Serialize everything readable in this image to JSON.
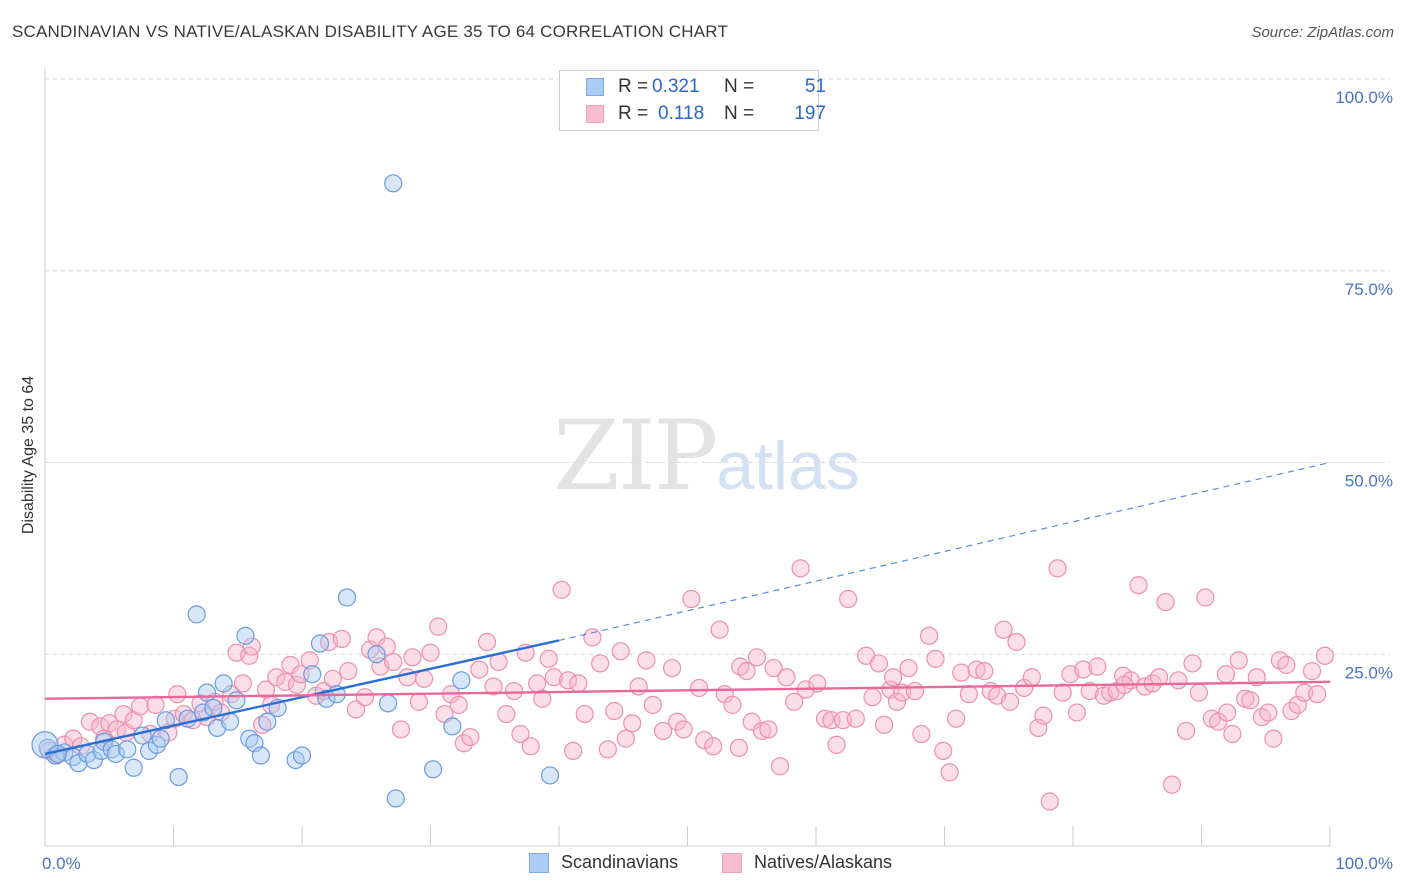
{
  "title": "SCANDINAVIAN VS NATIVE/ALASKAN DISABILITY AGE 35 TO 64 CORRELATION CHART",
  "source": "Source: ZipAtlas.com",
  "watermark": {
    "zip": "ZIP",
    "atlas": "atlas"
  },
  "legend": {
    "rows": [
      {
        "r_label": "R =",
        "r_value": "0.321",
        "n_label": "N =",
        "n_value": "51",
        "color": "#9dc3f2"
      },
      {
        "r_label": "R =",
        "r_value": "0.118",
        "n_label": "N =",
        "n_value": "197",
        "color": "#f6b3c8"
      }
    ]
  },
  "bottom_legend": [
    {
      "label": "Scandinavians",
      "color": "#9dc3f2"
    },
    {
      "label": "Natives/Alaskans",
      "color": "#f6b3c8"
    }
  ],
  "colors": {
    "blue_fill": "#a9c9f0",
    "blue_stroke": "#6a9be0",
    "blue_line": "#2b6fd1",
    "pink_fill": "#f7b6cb",
    "pink_stroke": "#ec8fae",
    "pink_line": "#e8689a",
    "grid": "#dcdcdc",
    "tick_label": "#4a72c4"
  },
  "chart_data": {
    "type": "scatter",
    "title": "SCANDINAVIAN VS NATIVE/ALASKAN DISABILITY AGE 35 TO 64 CORRELATION CHART",
    "xlabel": "",
    "ylabel": "Disability Age 35 to 64",
    "xlim": [
      0,
      100
    ],
    "ylim": [
      0,
      100
    ],
    "x_tick_labels": [
      "0.0%",
      "100.0%"
    ],
    "y_ticks": [
      25,
      50,
      75,
      100
    ],
    "y_tick_labels": [
      "25.0%",
      "50.0%",
      "75.0%",
      "100.0%"
    ],
    "grid": true,
    "legend_position": "top-center",
    "series": [
      {
        "name": "Scandinavians",
        "r": 0.321,
        "n": 51,
        "trend": {
          "x0": 0,
          "y0": 12.0,
          "x1": 40,
          "y1": 26.8,
          "dashed_to": {
            "x": 100,
            "y": 50.0
          }
        },
        "points": [
          [
            0.2,
            12.8
          ],
          [
            0.8,
            11.8
          ],
          [
            1.5,
            12.2
          ],
          [
            2.2,
            11.6
          ],
          [
            2.6,
            10.8
          ],
          [
            3.3,
            12.0
          ],
          [
            3.8,
            11.2
          ],
          [
            4.4,
            12.4
          ],
          [
            4.6,
            13.6
          ],
          [
            5.2,
            12.6
          ],
          [
            5.5,
            12.0
          ],
          [
            6.4,
            12.6
          ],
          [
            6.9,
            10.2
          ],
          [
            7.6,
            14.4
          ],
          [
            8.1,
            12.4
          ],
          [
            8.7,
            13.2
          ],
          [
            9.4,
            16.4
          ],
          [
            10.4,
            9.0
          ],
          [
            11.1,
            16.6
          ],
          [
            11.8,
            30.2
          ],
          [
            12.3,
            17.4
          ],
          [
            12.6,
            20.0
          ],
          [
            13.1,
            18.0
          ],
          [
            13.4,
            15.4
          ],
          [
            13.9,
            21.2
          ],
          [
            14.4,
            16.2
          ],
          [
            14.9,
            19.0
          ],
          [
            15.6,
            27.4
          ],
          [
            15.9,
            14.0
          ],
          [
            16.3,
            13.4
          ],
          [
            16.8,
            11.8
          ],
          [
            17.3,
            16.2
          ],
          [
            18.1,
            18.0
          ],
          [
            19.5,
            11.2
          ],
          [
            20.8,
            22.4
          ],
          [
            21.4,
            26.4
          ],
          [
            21.9,
            19.2
          ],
          [
            22.7,
            19.8
          ],
          [
            23.5,
            32.4
          ],
          [
            25.8,
            25.0
          ],
          [
            26.7,
            18.6
          ],
          [
            27.1,
            86.4
          ],
          [
            27.3,
            6.2
          ],
          [
            30.2,
            10.0
          ],
          [
            31.7,
            15.6
          ],
          [
            32.4,
            21.6
          ],
          [
            39.3,
            9.2
          ],
          [
            20.0,
            11.8
          ],
          [
            9.0,
            14.0
          ],
          [
            0.0,
            13.2
          ],
          [
            1.0,
            12.0
          ]
        ]
      },
      {
        "name": "Natives/Alaskans",
        "r": 0.118,
        "n": 197,
        "trend": {
          "x0": 0,
          "y0": 19.2,
          "x1": 100,
          "y1": 21.4
        },
        "points": [
          [
            0.3,
            12.4
          ],
          [
            0.9,
            11.8
          ],
          [
            1.5,
            13.2
          ],
          [
            2.2,
            14.0
          ],
          [
            2.8,
            13.0
          ],
          [
            3.5,
            16.2
          ],
          [
            4.3,
            15.6
          ],
          [
            4.6,
            14.0
          ],
          [
            5.0,
            16.0
          ],
          [
            5.6,
            15.2
          ],
          [
            6.1,
            17.2
          ],
          [
            6.3,
            14.8
          ],
          [
            6.9,
            16.4
          ],
          [
            7.4,
            18.2
          ],
          [
            8.2,
            14.6
          ],
          [
            8.6,
            18.4
          ],
          [
            9.6,
            14.8
          ],
          [
            10.1,
            16.6
          ],
          [
            10.3,
            19.8
          ],
          [
            10.8,
            17.2
          ],
          [
            11.5,
            16.4
          ],
          [
            12.1,
            18.6
          ],
          [
            12.6,
            16.8
          ],
          [
            13.2,
            18.8
          ],
          [
            13.7,
            17.4
          ],
          [
            14.5,
            19.8
          ],
          [
            14.9,
            25.2
          ],
          [
            15.4,
            21.2
          ],
          [
            15.9,
            24.8
          ],
          [
            16.1,
            26.0
          ],
          [
            16.9,
            15.8
          ],
          [
            17.2,
            20.4
          ],
          [
            17.6,
            18.4
          ],
          [
            18.0,
            22.0
          ],
          [
            18.7,
            21.4
          ],
          [
            19.1,
            23.6
          ],
          [
            19.6,
            21.0
          ],
          [
            19.9,
            22.4
          ],
          [
            20.6,
            24.2
          ],
          [
            21.1,
            19.6
          ],
          [
            21.7,
            20.2
          ],
          [
            22.1,
            26.6
          ],
          [
            22.4,
            21.8
          ],
          [
            23.1,
            27.0
          ],
          [
            23.6,
            22.8
          ],
          [
            24.2,
            17.8
          ],
          [
            24.9,
            19.4
          ],
          [
            25.3,
            25.6
          ],
          [
            25.8,
            27.2
          ],
          [
            26.1,
            23.4
          ],
          [
            26.6,
            26.0
          ],
          [
            27.1,
            24.0
          ],
          [
            27.7,
            15.2
          ],
          [
            28.2,
            22.0
          ],
          [
            28.6,
            24.6
          ],
          [
            29.1,
            18.8
          ],
          [
            29.5,
            21.8
          ],
          [
            30.0,
            25.2
          ],
          [
            30.6,
            28.6
          ],
          [
            31.1,
            17.2
          ],
          [
            31.6,
            19.8
          ],
          [
            32.2,
            18.4
          ],
          [
            32.6,
            13.4
          ],
          [
            33.1,
            14.2
          ],
          [
            33.8,
            23.0
          ],
          [
            34.4,
            26.6
          ],
          [
            34.9,
            20.8
          ],
          [
            35.3,
            24.0
          ],
          [
            35.9,
            17.2
          ],
          [
            36.5,
            20.2
          ],
          [
            37.0,
            14.6
          ],
          [
            37.4,
            25.2
          ],
          [
            37.8,
            13.0
          ],
          [
            38.3,
            21.2
          ],
          [
            38.7,
            19.2
          ],
          [
            39.2,
            24.4
          ],
          [
            39.6,
            22.0
          ],
          [
            40.2,
            33.4
          ],
          [
            40.7,
            21.6
          ],
          [
            41.1,
            12.4
          ],
          [
            41.5,
            21.2
          ],
          [
            42.0,
            17.2
          ],
          [
            42.6,
            27.2
          ],
          [
            43.2,
            23.8
          ],
          [
            43.8,
            12.6
          ],
          [
            44.3,
            17.6
          ],
          [
            44.8,
            25.4
          ],
          [
            45.2,
            14.0
          ],
          [
            45.7,
            16.0
          ],
          [
            46.2,
            20.8
          ],
          [
            46.8,
            24.2
          ],
          [
            47.3,
            18.4
          ],
          [
            48.1,
            15.0
          ],
          [
            48.8,
            23.2
          ],
          [
            49.2,
            16.2
          ],
          [
            49.7,
            15.2
          ],
          [
            50.3,
            32.2
          ],
          [
            50.9,
            20.6
          ],
          [
            51.3,
            13.8
          ],
          [
            52.0,
            13.0
          ],
          [
            52.5,
            28.2
          ],
          [
            52.9,
            19.8
          ],
          [
            53.5,
            18.4
          ],
          [
            54.1,
            23.4
          ],
          [
            54.6,
            22.8
          ],
          [
            55.0,
            16.2
          ],
          [
            55.4,
            24.6
          ],
          [
            55.8,
            15.0
          ],
          [
            56.3,
            15.2
          ],
          [
            56.7,
            23.2
          ],
          [
            57.2,
            10.4
          ],
          [
            57.7,
            22.0
          ],
          [
            58.3,
            18.8
          ],
          [
            58.8,
            36.2
          ],
          [
            59.2,
            20.4
          ],
          [
            60.1,
            21.2
          ],
          [
            60.7,
            16.6
          ],
          [
            61.2,
            16.4
          ],
          [
            61.6,
            13.2
          ],
          [
            62.1,
            16.4
          ],
          [
            62.5,
            32.2
          ],
          [
            63.1,
            16.6
          ],
          [
            63.9,
            24.8
          ],
          [
            64.4,
            19.4
          ],
          [
            64.9,
            23.8
          ],
          [
            65.3,
            15.8
          ],
          [
            65.8,
            20.4
          ],
          [
            66.3,
            18.8
          ],
          [
            66.7,
            20.0
          ],
          [
            67.2,
            23.2
          ],
          [
            67.7,
            20.2
          ],
          [
            68.2,
            14.6
          ],
          [
            68.8,
            27.4
          ],
          [
            69.3,
            24.4
          ],
          [
            69.9,
            12.4
          ],
          [
            70.4,
            9.6
          ],
          [
            70.9,
            16.6
          ],
          [
            71.3,
            22.6
          ],
          [
            71.9,
            19.8
          ],
          [
            72.5,
            23.0
          ],
          [
            73.1,
            22.8
          ],
          [
            73.6,
            20.2
          ],
          [
            74.1,
            19.6
          ],
          [
            74.6,
            28.2
          ],
          [
            75.1,
            18.8
          ],
          [
            75.6,
            26.6
          ],
          [
            76.2,
            20.6
          ],
          [
            76.8,
            22.0
          ],
          [
            77.3,
            15.4
          ],
          [
            77.7,
            17.0
          ],
          [
            78.2,
            5.8
          ],
          [
            78.8,
            36.2
          ],
          [
            79.2,
            20.0
          ],
          [
            79.8,
            22.4
          ],
          [
            80.3,
            17.4
          ],
          [
            80.8,
            23.0
          ],
          [
            81.3,
            20.2
          ],
          [
            81.9,
            23.4
          ],
          [
            82.4,
            19.6
          ],
          [
            82.9,
            20.0
          ],
          [
            83.4,
            20.2
          ],
          [
            83.9,
            22.2
          ],
          [
            84.5,
            21.6
          ],
          [
            85.1,
            34.0
          ],
          [
            85.6,
            20.8
          ],
          [
            86.2,
            21.2
          ],
          [
            86.7,
            22.0
          ],
          [
            87.2,
            31.8
          ],
          [
            87.7,
            8.0
          ],
          [
            88.2,
            21.6
          ],
          [
            88.8,
            15.0
          ],
          [
            89.3,
            23.8
          ],
          [
            89.8,
            20.0
          ],
          [
            90.3,
            32.4
          ],
          [
            90.8,
            16.6
          ],
          [
            91.3,
            16.2
          ],
          [
            91.9,
            22.4
          ],
          [
            92.4,
            14.6
          ],
          [
            92.9,
            24.2
          ],
          [
            93.4,
            19.2
          ],
          [
            93.8,
            19.0
          ],
          [
            94.3,
            22.0
          ],
          [
            94.7,
            16.8
          ],
          [
            95.2,
            17.4
          ],
          [
            95.6,
            14.0
          ],
          [
            96.1,
            24.2
          ],
          [
            96.6,
            23.6
          ],
          [
            97.0,
            17.6
          ],
          [
            97.5,
            18.4
          ],
          [
            98.0,
            20.0
          ],
          [
            98.6,
            22.8
          ],
          [
            99.0,
            19.8
          ],
          [
            99.6,
            24.8
          ],
          [
            54.0,
            12.8
          ],
          [
            66.0,
            22.0
          ],
          [
            84.0,
            21.0
          ],
          [
            92.0,
            17.4
          ]
        ]
      }
    ]
  }
}
